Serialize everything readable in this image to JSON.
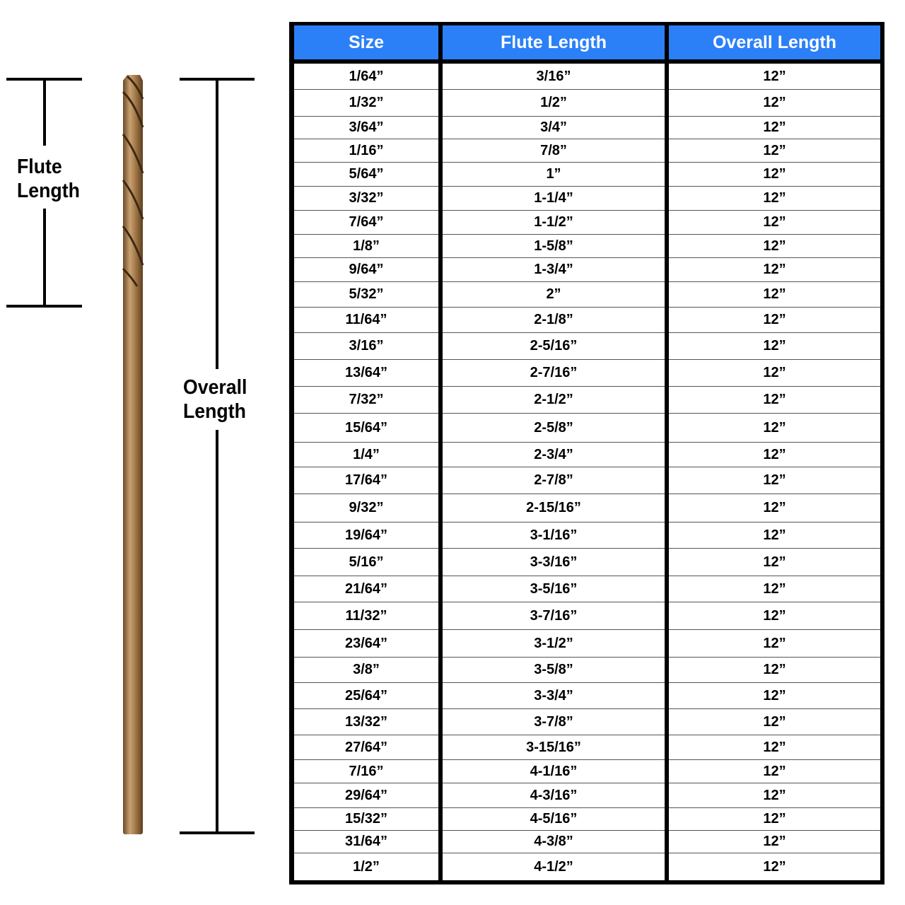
{
  "diagram": {
    "flute_label_line1": "Flute",
    "flute_label_line2": "Length",
    "overall_label_line1": "Overall",
    "overall_label_line2": "Length",
    "drill_color": "#a07a4c"
  },
  "table": {
    "header_color": "#2b80f7",
    "headers": [
      "Size",
      "Flute Length",
      "Overall Length"
    ],
    "rows": [
      [
        "1/64”",
        "3/16”",
        "12”"
      ],
      [
        "1/32”",
        "1/2”",
        "12”"
      ],
      [
        "3/64”",
        "3/4”",
        "12”"
      ],
      [
        "1/16”",
        "7/8”",
        "12”"
      ],
      [
        "5/64”",
        "1”",
        "12”"
      ],
      [
        "3/32”",
        "1-1/4”",
        "12”"
      ],
      [
        "7/64”",
        "1-1/2”",
        "12”"
      ],
      [
        "1/8”",
        "1-5/8”",
        "12”"
      ],
      [
        "9/64”",
        "1-3/4”",
        "12”"
      ],
      [
        "5/32”",
        "2”",
        "12”"
      ],
      [
        "11/64”",
        "2-1/8”",
        "12”"
      ],
      [
        "3/16”",
        "2-5/16”",
        "12”"
      ],
      [
        "13/64”",
        "2-7/16”",
        "12”"
      ],
      [
        "7/32”",
        "2-1/2”",
        "12”"
      ],
      [
        "15/64”",
        "2-5/8”",
        "12”"
      ],
      [
        "1/4”",
        "2-3/4”",
        "12”"
      ],
      [
        "17/64”",
        "2-7/8”",
        "12”"
      ],
      [
        "9/32”",
        "2-15/16”",
        "12”"
      ],
      [
        "19/64”",
        "3-1/16”",
        "12”"
      ],
      [
        "5/16”",
        "3-3/16”",
        "12”"
      ],
      [
        "21/64”",
        "3-5/16”",
        "12”"
      ],
      [
        "11/32”",
        "3-7/16”",
        "12”"
      ],
      [
        "23/64”",
        "3-1/2”",
        "12”"
      ],
      [
        "3/8”",
        "3-5/8”",
        "12”"
      ],
      [
        "25/64”",
        "3-3/4”",
        "12”"
      ],
      [
        "13/32”",
        "3-7/8”",
        "12”"
      ],
      [
        "27/64”",
        "3-15/16”",
        "12”"
      ],
      [
        "7/16”",
        "4-1/16”",
        "12”"
      ],
      [
        "29/64”",
        "4-3/16”",
        "12”"
      ],
      [
        "15/32”",
        "4-5/16”",
        "12”"
      ],
      [
        "31/64”",
        "4-3/8”",
        "12”"
      ],
      [
        "1/2”",
        "4-1/2”",
        "12”"
      ]
    ]
  }
}
